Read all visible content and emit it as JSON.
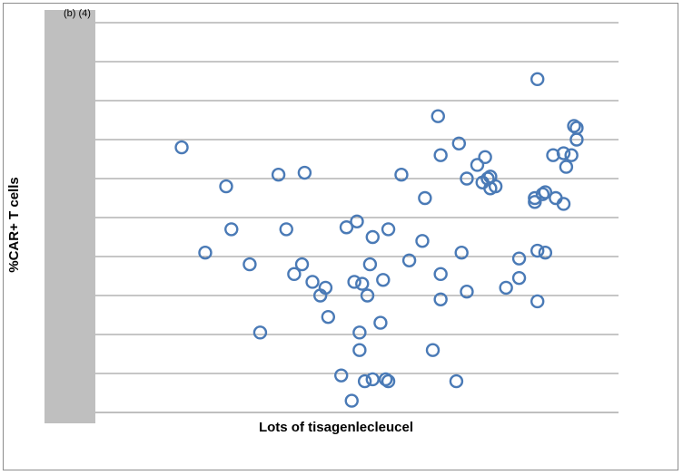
{
  "chart_data": {
    "type": "scatter",
    "panel_label": "(b) (4)",
    "title": "",
    "xlabel": "Lots of tisagenlecleucel",
    "ylabel": "%CAR+ T cells",
    "xlim": [
      0,
      100
    ],
    "ylim": [
      0,
      10
    ],
    "grid": true,
    "legend": "none",
    "marker_color": "#4a7ab6",
    "redaction_color": "#bfbfbf",
    "series": [
      {
        "x": [
          16.5,
          25.0,
          26.0,
          21.0,
          29.5,
          35.0,
          36.5,
          39.5,
          38.0,
          40.0,
          31.5,
          41.5,
          44.0,
          43.0,
          44.5,
          47.0,
          49.0,
          50.5,
          50.5,
          50.0,
          49.5,
          48.0,
          51.0,
          52.0,
          52.5,
          53.0,
          58.5,
          55.0,
          54.5,
          56.0,
          55.5,
          56.0,
          53.0,
          51.5,
          60.0,
          63.0,
          62.5,
          64.5,
          65.5,
          66.0,
          66.0,
          69.5,
          69.0,
          70.0,
          71.0,
          73.0,
          71.0,
          74.0,
          75.5,
          75.0,
          74.5,
          76.5,
          75.5,
          78.5,
          81.0,
          84.5,
          85.5,
          84.0,
          84.0,
          86.0,
          84.5,
          89.5,
          91.0,
          92.0,
          91.5,
          84.5,
          90.0,
          88.0,
          87.5,
          86.0,
          89.5,
          92.0,
          81.0,
          66.0
        ],
        "y": [
          6.8,
          5.8,
          4.7,
          4.1,
          3.8,
          6.1,
          4.7,
          3.8,
          3.55,
          6.15,
          2.05,
          3.35,
          3.2,
          3.0,
          2.45,
          0.95,
          0.3,
          1.6,
          2.05,
          4.9,
          3.35,
          4.75,
          3.3,
          3.0,
          3.8,
          4.5,
          6.1,
          3.4,
          2.3,
          4.7,
          0.85,
          0.8,
          0.85,
          0.8,
          3.9,
          5.5,
          4.4,
          1.6,
          7.6,
          6.6,
          3.55,
          6.9,
          0.8,
          4.1,
          3.1,
          6.35,
          6.0,
          5.9,
          6.05,
          6.0,
          6.55,
          5.8,
          5.75,
          3.2,
          3.45,
          2.85,
          5.6,
          5.5,
          5.4,
          4.1,
          4.15,
          5.35,
          6.6,
          7.0,
          7.35,
          8.55,
          6.3,
          5.5,
          6.6,
          5.65,
          6.65,
          7.3,
          3.95,
          2.9
        ]
      }
    ]
  }
}
